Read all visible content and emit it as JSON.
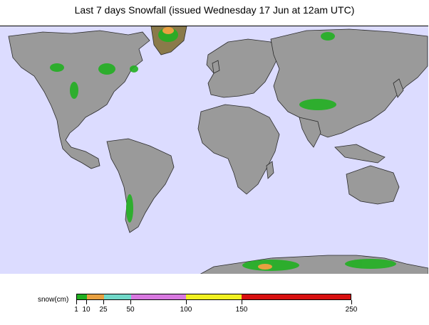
{
  "title": "Last 7 days Snowfall (issued Wednesday 17 Jun at 12am UTC)",
  "legend": {
    "label": "snow(cm)",
    "segments": [
      {
        "from": 1,
        "to": 10,
        "color": "#22b022"
      },
      {
        "from": 10,
        "to": 25,
        "color": "#e8a040"
      },
      {
        "from": 25,
        "to": 50,
        "color": "#70d8c8"
      },
      {
        "from": 50,
        "to": 100,
        "color": "#d878e0"
      },
      {
        "from": 100,
        "to": 150,
        "color": "#f0f020"
      },
      {
        "from": 150,
        "to": 250,
        "color": "#d81010"
      }
    ],
    "ticks": [
      "1",
      "10",
      "25",
      "50",
      "100",
      "150",
      "250"
    ]
  },
  "colors": {
    "ocean": "#dcdcff",
    "land": "#9a9a9a",
    "relief": "#c8c8c8",
    "snow_light": "#22b022"
  }
}
